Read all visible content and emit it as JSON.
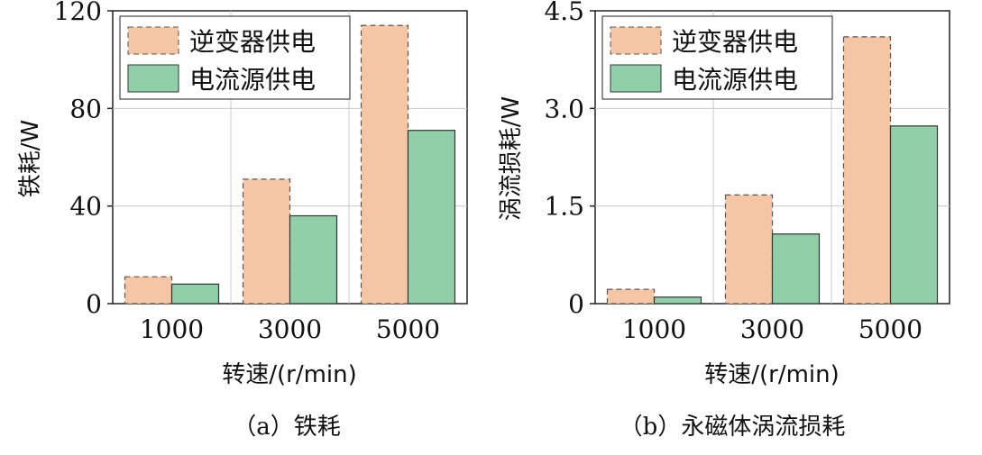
{
  "colors": {
    "inverter": "#f6c6a4",
    "current": "#8fd0a9",
    "grid": "#c8c8c8",
    "axis": "#222222"
  },
  "chart_data": [
    {
      "type": "bar",
      "caption": "（a）铁耗",
      "categories": [
        "1000",
        "3000",
        "5000"
      ],
      "series": [
        {
          "name": "逆变器供电",
          "values": [
            11,
            51,
            114
          ]
        },
        {
          "name": "电流源供电",
          "values": [
            8,
            36,
            71
          ]
        }
      ],
      "xlabel": "转速/(r/min)",
      "ylabel": "铁耗/W",
      "ylim": [
        0,
        120
      ],
      "yticks": [
        "0",
        "40",
        "80",
        "120"
      ],
      "ytick_values": [
        0,
        40,
        80,
        120
      ],
      "legend": "top-left",
      "grid": true
    },
    {
      "type": "bar",
      "caption": "（b）永磁体涡流损耗",
      "categories": [
        "1000",
        "3000",
        "5000"
      ],
      "series": [
        {
          "name": "逆变器供电",
          "values": [
            0.22,
            1.67,
            4.1
          ]
        },
        {
          "name": "电流源供电",
          "values": [
            0.1,
            1.07,
            2.73
          ]
        }
      ],
      "xlabel": "转速/(r/min)",
      "ylabel": "涡流损耗/W",
      "ylim": [
        0,
        4.5
      ],
      "yticks": [
        "0",
        "1.5",
        "3.0",
        "4.5"
      ],
      "ytick_values": [
        0,
        1.5,
        3.0,
        4.5
      ],
      "legend": "top-left",
      "grid": true
    }
  ]
}
